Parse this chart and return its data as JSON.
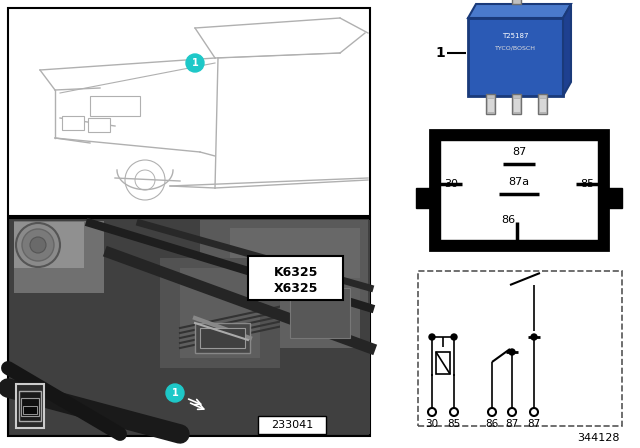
{
  "bg_color": "#ffffff",
  "cyan_color": "#1ec8c8",
  "gray_car": "#b0b0b0",
  "black": "#000000",
  "white": "#ffffff",
  "relay_blue": "#2b5ab5",
  "relay_blue_dark": "#1a3a7a",
  "relay_blue_light": "#4a7acc",
  "pin_silver": "#c0c0c0",
  "pin_silver_dark": "#909090",
  "label_1": "1",
  "k6325": "K6325",
  "x6325": "X6325",
  "part_num": "233041",
  "diagram_num": "344128",
  "photo_dark": "#4a4a4a",
  "photo_mid": "#6a6a6a",
  "photo_light": "#8a8a8a"
}
